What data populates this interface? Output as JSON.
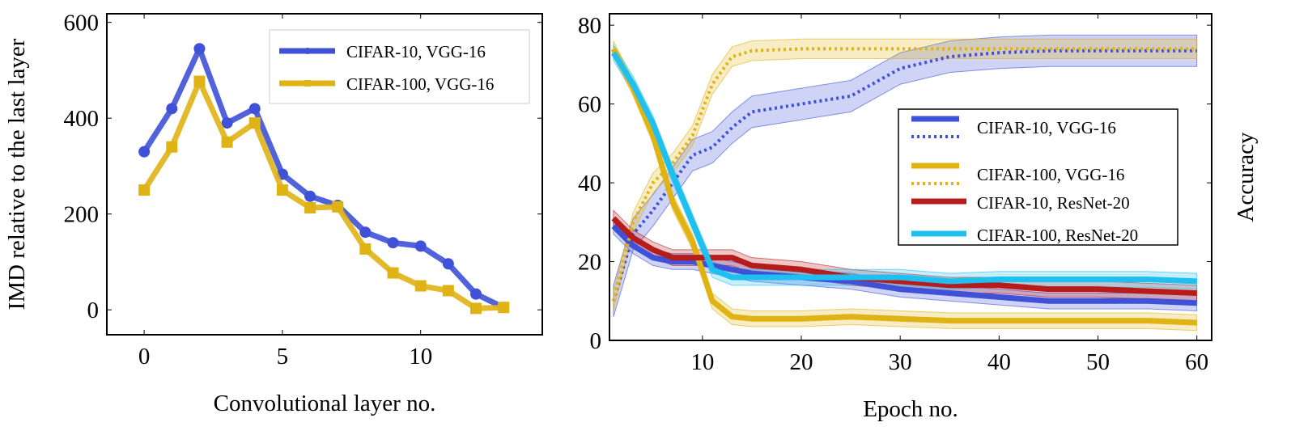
{
  "chart_data": [
    {
      "type": "line",
      "title": "",
      "xlabel": "Convolutional layer no.",
      "ylabel": "IMD relative to the last layer",
      "xlim": [
        -1.35,
        14.4
      ],
      "ylim": [
        -52,
        618
      ],
      "xticks": [
        0,
        5,
        10
      ],
      "yticks": [
        0,
        200,
        400,
        600
      ],
      "grid": false,
      "legend_placement": "top-right",
      "x": [
        0,
        1,
        2,
        3,
        4,
        5,
        6,
        7,
        8,
        9,
        10,
        11,
        12,
        13
      ],
      "series": [
        {
          "name": "CIFAR-10, VGG-16",
          "color": "#3f51d6",
          "marker": "circle",
          "values": [
            330,
            420,
            545,
            390,
            420,
            283,
            237,
            218,
            162,
            140,
            133,
            96,
            33,
            5
          ]
        },
        {
          "name": "CIFAR-100, VGG-16",
          "color": "#e0b315",
          "marker": "square",
          "values": [
            250,
            340,
            477,
            350,
            390,
            250,
            213,
            215,
            127,
            77,
            50,
            40,
            3,
            5
          ]
        }
      ]
    },
    {
      "type": "line",
      "title": "",
      "xlabel": "Epoch no.",
      "ylabel": "Accuracy",
      "xlim": [
        0.6,
        61.5
      ],
      "ylim": [
        0,
        82.9
      ],
      "xticks": [
        10,
        20,
        30,
        40,
        50,
        60
      ],
      "yticks": [
        0,
        20,
        40,
        60,
        80
      ],
      "grid": false,
      "legend_placement": "center-right",
      "x": [
        1,
        3,
        5,
        7,
        9,
        11,
        13,
        15,
        20,
        25,
        30,
        35,
        40,
        45,
        50,
        55,
        60
      ],
      "series": [
        {
          "name": "CIFAR-10, VGG-16",
          "style": "solid",
          "color": "#3f51d6",
          "band": 2,
          "values": [
            29,
            24,
            21,
            20,
            20,
            19,
            18,
            17,
            16,
            15,
            13,
            12,
            11,
            10,
            10,
            10,
            9.5
          ]
        },
        {
          "name": "",
          "style": "dotted",
          "color": "#3f51d6",
          "band": 4,
          "values": [
            10,
            27,
            33,
            40,
            47,
            49,
            54,
            58,
            60,
            62,
            69,
            72,
            73,
            73.5,
            73.5,
            73.5,
            73.5
          ]
        },
        {
          "name": "CIFAR-100, VGG-16",
          "style": "solid",
          "color": "#e0b315",
          "band": 2,
          "values": [
            74,
            64,
            52,
            35,
            25,
            10,
            6,
            5.5,
            5.5,
            6,
            5.5,
            5,
            5,
            5,
            5,
            5,
            4.5
          ]
        },
        {
          "name": "",
          "style": "dotted",
          "color": "#e0b315",
          "band": 2.5,
          "values": [
            10,
            30,
            40,
            45,
            52,
            65,
            72,
            73.5,
            74,
            74,
            74,
            74,
            74,
            74,
            74,
            74,
            74
          ]
        },
        {
          "name": "CIFAR-10, ResNet-20",
          "style": "solid",
          "color": "#b71c1c",
          "band": 2,
          "values": [
            31,
            26,
            23,
            21,
            21,
            21,
            21,
            19,
            18,
            16,
            15,
            14,
            14,
            13,
            13,
            12.5,
            12
          ]
        },
        {
          "name": "CIFAR-100, ResNet-20",
          "style": "solid",
          "color": "#1fc0f0",
          "band": 2,
          "values": [
            73,
            65,
            55,
            42,
            30,
            18,
            16,
            16,
            16,
            16,
            16,
            15,
            15.5,
            15.5,
            15.5,
            15.5,
            15
          ]
        }
      ]
    }
  ]
}
